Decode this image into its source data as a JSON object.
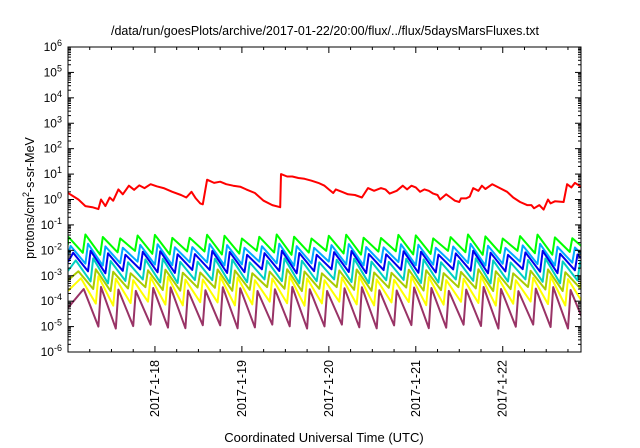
{
  "chart_data": {
    "type": "line",
    "title": "/data/run/goesPlots/archive/2017-01-22/20:00/flux/../flux/5daysMarsFluxes.txt",
    "xlabel": "Coordinated Universal Time (UTC)",
    "ylabel": "protons/cm2-s-sr-MeV",
    "ylabel_parts": {
      "base": "protons/cm",
      "sup": "2",
      "rest": "-s-sr-MeV"
    },
    "y_scale": "log",
    "ylim_exp": [
      -6,
      6
    ],
    "y_ticks": [
      {
        "base": "10",
        "exp": "-6"
      },
      {
        "base": "10",
        "exp": "-5"
      },
      {
        "base": "10",
        "exp": "-4"
      },
      {
        "base": "10",
        "exp": "-3"
      },
      {
        "base": "10",
        "exp": "-2"
      },
      {
        "base": "10",
        "exp": "-1"
      },
      {
        "base": "10",
        "exp": "0"
      },
      {
        "base": "10",
        "exp": "1"
      },
      {
        "base": "10",
        "exp": "2"
      },
      {
        "base": "10",
        "exp": "3"
      },
      {
        "base": "10",
        "exp": "4"
      },
      {
        "base": "10",
        "exp": "5"
      },
      {
        "base": "10",
        "exp": "6"
      }
    ],
    "x_range_days": [
      17.0,
      22.9
    ],
    "x_ticks": [
      {
        "label": "2017-1-18",
        "day": 18
      },
      {
        "label": "2017-1-19",
        "day": 19
      },
      {
        "label": "2017-1-20",
        "day": 20
      },
      {
        "label": "2017-1-21",
        "day": 21
      },
      {
        "label": "2017-1-22",
        "day": 22
      }
    ],
    "grid": false,
    "series": [
      {
        "color": "#ff0000",
        "kind": "peaks",
        "points": [
          [
            17.0,
            1.8
          ],
          [
            17.12,
            1.0
          ],
          [
            17.2,
            0.55
          ],
          [
            17.28,
            0.5
          ],
          [
            17.35,
            0.42
          ],
          [
            17.38,
            1.0
          ],
          [
            17.43,
            0.55
          ],
          [
            17.48,
            1.2
          ],
          [
            17.52,
            0.9
          ],
          [
            17.58,
            2.5
          ],
          [
            17.63,
            1.6
          ],
          [
            17.7,
            3.5
          ],
          [
            17.76,
            2.4
          ],
          [
            17.82,
            3.6
          ],
          [
            17.88,
            2.8
          ],
          [
            17.95,
            4.0
          ],
          [
            18.02,
            3.3
          ],
          [
            18.1,
            2.8
          ],
          [
            18.2,
            2.0
          ],
          [
            18.3,
            1.5
          ],
          [
            18.36,
            1.2
          ],
          [
            18.42,
            2.0
          ],
          [
            18.47,
            1.1
          ],
          [
            18.52,
            0.7
          ],
          [
            18.55,
            0.65
          ],
          [
            18.6,
            6.0
          ],
          [
            18.68,
            4.5
          ],
          [
            18.75,
            5.0
          ],
          [
            18.82,
            4.0
          ],
          [
            18.9,
            3.5
          ],
          [
            18.98,
            3.2
          ],
          [
            19.05,
            2.5
          ],
          [
            19.15,
            1.8
          ],
          [
            19.25,
            0.9
          ],
          [
            19.35,
            0.6
          ],
          [
            19.44,
            0.5
          ],
          [
            19.45,
            10.0
          ],
          [
            19.52,
            8.0
          ],
          [
            19.58,
            8.0
          ],
          [
            19.65,
            7.0
          ],
          [
            19.72,
            6.5
          ],
          [
            19.8,
            5.5
          ],
          [
            19.88,
            4.5
          ],
          [
            19.95,
            3.5
          ],
          [
            20.0,
            2.5
          ],
          [
            20.05,
            1.8
          ],
          [
            20.08,
            2.5
          ],
          [
            20.15,
            2.0
          ],
          [
            20.22,
            1.6
          ],
          [
            20.3,
            1.5
          ],
          [
            20.38,
            1.2
          ],
          [
            20.45,
            2.8
          ],
          [
            20.52,
            2.2
          ],
          [
            20.6,
            2.8
          ],
          [
            20.65,
            2.5
          ],
          [
            20.7,
            1.7
          ],
          [
            20.78,
            2.2
          ],
          [
            20.85,
            3.5
          ],
          [
            20.9,
            2.5
          ],
          [
            20.95,
            3.5
          ],
          [
            21.0,
            3.0
          ],
          [
            21.05,
            2.0
          ],
          [
            21.1,
            2.5
          ],
          [
            21.15,
            2.2
          ],
          [
            21.2,
            1.7
          ],
          [
            21.25,
            1.5
          ],
          [
            21.28,
            1.0
          ],
          [
            21.35,
            1.6
          ],
          [
            21.4,
            1.2
          ],
          [
            21.45,
            0.9
          ],
          [
            21.5,
            0.8
          ],
          [
            21.52,
            1.1
          ],
          [
            21.58,
            1.1
          ],
          [
            21.62,
            1.3
          ],
          [
            21.66,
            2.8
          ],
          [
            21.72,
            2.2
          ],
          [
            21.76,
            3.5
          ],
          [
            21.8,
            2.6
          ],
          [
            21.88,
            4.0
          ],
          [
            21.95,
            3.0
          ],
          [
            22.05,
            2.0
          ],
          [
            22.12,
            1.2
          ],
          [
            22.2,
            0.8
          ],
          [
            22.28,
            0.6
          ],
          [
            22.33,
            0.6
          ],
          [
            22.36,
            0.45
          ],
          [
            22.42,
            0.6
          ],
          [
            22.47,
            0.4
          ],
          [
            22.52,
            1.0
          ],
          [
            22.55,
            0.7
          ],
          [
            22.6,
            0.85
          ],
          [
            22.7,
            0.8
          ],
          [
            22.74,
            4.0
          ],
          [
            22.79,
            3.0
          ],
          [
            22.83,
            4.5
          ],
          [
            22.88,
            3.5
          ],
          [
            22.9,
            3.0
          ]
        ]
      },
      {
        "color": "#00ff00",
        "kind": "sawtooth",
        "low": 0.008,
        "high": 0.035,
        "phase": 0.0
      },
      {
        "color": "#00aaff",
        "kind": "sawtooth",
        "low": 0.003,
        "high": 0.015,
        "phase": 0.03
      },
      {
        "color": "#0000ee",
        "kind": "sawtooth",
        "low": 0.0015,
        "high": 0.008,
        "phase": 0.06
      },
      {
        "color": "#00d0c0",
        "kind": "sawtooth",
        "low": 0.0006,
        "high": 0.004,
        "phase": 0.09
      },
      {
        "color": "#aacc00",
        "kind": "sawtooth",
        "low": 0.0003,
        "high": 0.0015,
        "phase": 0.12
      },
      {
        "color": "#ffff00",
        "kind": "sawtooth",
        "low": 8e-05,
        "high": 0.0008,
        "phase": 0.15
      },
      {
        "color": "#993366",
        "kind": "sawtooth",
        "low": 1e-05,
        "high": 0.0003,
        "phase": 0.18
      }
    ]
  }
}
